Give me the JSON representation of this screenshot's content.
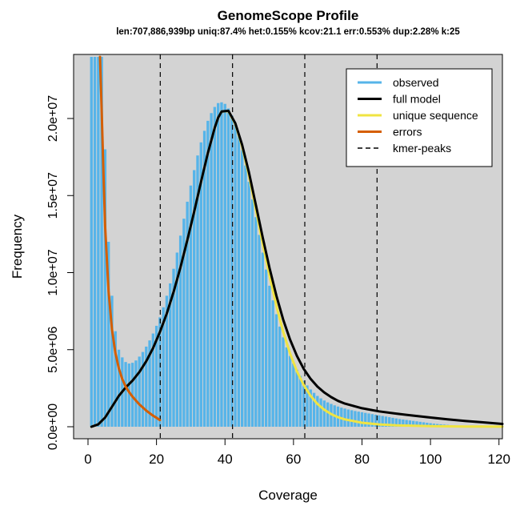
{
  "chart_data": {
    "type": "bar",
    "title": "GenomeScope Profile",
    "subtitle": "len:707,886,939bp uniq:87.4%  het:0.155% kcov:21.1 err:0.553%  dup:2.28%  k:25",
    "xlabel": "Coverage",
    "ylabel": "Frequency",
    "xlim": [
      0,
      121
    ],
    "ylim": [
      0,
      24000000
    ],
    "x_ticks": [
      0,
      20,
      40,
      60,
      80,
      100,
      120
    ],
    "x_tick_labels": [
      "0",
      "20",
      "40",
      "60",
      "80",
      "100",
      "120"
    ],
    "y_ticks": [
      0,
      5000000,
      10000000,
      15000000,
      20000000
    ],
    "y_tick_labels": [
      "0.0e+00",
      "5.0e+06",
      "1.0e+07",
      "1.5e+07",
      "2.0e+07"
    ],
    "kmer_peaks": [
      21.1,
      42.2,
      63.3,
      84.4
    ],
    "legend": {
      "position": "top-right",
      "entries": [
        {
          "label": "observed",
          "color": "#56B4E9",
          "style": "solid"
        },
        {
          "label": "full model",
          "color": "#000000",
          "style": "solid"
        },
        {
          "label": "unique sequence",
          "color": "#F0E442",
          "style": "solid"
        },
        {
          "label": "errors",
          "color": "#D55E00",
          "style": "solid"
        },
        {
          "label": "kmer-peaks",
          "color": "#000000",
          "style": "dashed"
        }
      ]
    },
    "colors": {
      "background": "#d3d3d3",
      "observed": "#56B4E9",
      "full_model": "#000000",
      "unique_sequence": "#F0E442",
      "errors": "#D55E00"
    },
    "series": [
      {
        "name": "observed",
        "x": [
          1,
          2,
          3,
          4,
          5,
          6,
          7,
          8,
          9,
          10,
          11,
          12,
          13,
          14,
          15,
          16,
          17,
          18,
          19,
          20,
          21,
          22,
          23,
          24,
          25,
          26,
          27,
          28,
          29,
          30,
          31,
          32,
          33,
          34,
          35,
          36,
          37,
          38,
          39,
          40,
          41,
          42,
          43,
          44,
          45,
          46,
          47,
          48,
          49,
          50,
          51,
          52,
          53,
          54,
          55,
          56,
          57,
          58,
          59,
          60,
          61,
          62,
          63,
          64,
          65,
          66,
          67,
          68,
          69,
          70,
          71,
          72,
          73,
          74,
          75,
          76,
          77,
          78,
          79,
          80,
          81,
          82,
          83,
          84,
          85,
          86,
          87,
          88,
          89,
          90,
          91,
          92,
          93,
          94,
          95,
          96,
          97,
          98,
          99,
          100,
          101,
          102,
          103,
          104,
          105,
          106,
          107,
          108,
          109,
          110,
          111,
          112,
          113,
          114,
          115,
          116,
          117,
          118,
          119,
          120,
          121
        ],
        "y": [
          24000000,
          24000000,
          24000000,
          24000000,
          18000000,
          12000000,
          8500000,
          6200000,
          5000000,
          4500000,
          4200000,
          4100000,
          4150000,
          4300000,
          4550000,
          4850000,
          5200000,
          5600000,
          6050000,
          6550000,
          7100000,
          7750000,
          8500000,
          9300000,
          10250000,
          11300000,
          12400000,
          13500000,
          14600000,
          15650000,
          16650000,
          17600000,
          18450000,
          19200000,
          19850000,
          20350000,
          20750000,
          21000000,
          21050000,
          20950000,
          20650000,
          20200000,
          19600000,
          18850000,
          17950000,
          16950000,
          15900000,
          14750000,
          13600000,
          12450000,
          11300000,
          10200000,
          9150000,
          8200000,
          7300000,
          6500000,
          5800000,
          5150000,
          4600000,
          4100000,
          3700000,
          3300000,
          2980000,
          2680000,
          2420000,
          2200000,
          2000000,
          1840000,
          1700000,
          1580000,
          1480000,
          1390000,
          1310000,
          1240000,
          1180000,
          1120000,
          1070000,
          1020000,
          980000,
          940000,
          900000,
          860000,
          820000,
          780000,
          740000,
          700000,
          660000,
          620000,
          580000,
          540000,
          500000,
          470000,
          440000,
          410000,
          380000,
          350000,
          320000,
          290000,
          260000,
          230000,
          200000,
          180000,
          160000,
          140000,
          120000,
          100000,
          90000,
          80000,
          70000,
          60000,
          50000,
          40000,
          30000,
          25000,
          20000,
          15000,
          10000,
          8000,
          6000,
          4000,
          2000
        ]
      },
      {
        "name": "full model",
        "x": [
          1,
          3,
          5,
          7,
          9,
          11,
          13,
          15,
          17,
          19,
          21,
          23,
          25,
          27,
          29,
          31,
          33,
          35,
          37,
          38,
          39,
          41,
          43,
          45,
          47,
          49,
          51,
          53,
          55,
          57,
          59,
          61,
          63,
          65,
          67,
          69,
          71,
          73,
          75,
          80,
          85,
          90,
          95,
          100,
          105,
          110,
          115,
          121
        ],
        "y": [
          0,
          150000,
          600000,
          1300000,
          2000000,
          2550000,
          3000000,
          3550000,
          4250000,
          5100000,
          6150000,
          7350000,
          8750000,
          10350000,
          12100000,
          13950000,
          15900000,
          17750000,
          19400000,
          20050000,
          20450000,
          20500000,
          19700000,
          18300000,
          16500000,
          14400000,
          12300000,
          10300000,
          8500000,
          6950000,
          5650000,
          4600000,
          3750000,
          3100000,
          2600000,
          2220000,
          1920000,
          1680000,
          1500000,
          1200000,
          1000000,
          850000,
          720000,
          600000,
          480000,
          380000,
          290000,
          180000
        ]
      },
      {
        "name": "unique sequence",
        "x": [
          1,
          3,
          5,
          7,
          9,
          11,
          13,
          15,
          17,
          19,
          21,
          23,
          25,
          27,
          29,
          31,
          33,
          35,
          37,
          38,
          39,
          41,
          43,
          45,
          47,
          49,
          51,
          53,
          55,
          57,
          59,
          61,
          63,
          65,
          67,
          69,
          71,
          73,
          75,
          80,
          85,
          90,
          95,
          100,
          105,
          110,
          115,
          121
        ],
        "y": [
          0,
          150000,
          600000,
          1300000,
          2000000,
          2550000,
          3000000,
          3550000,
          4250000,
          5100000,
          6150000,
          7350000,
          8750000,
          10350000,
          12100000,
          13950000,
          15900000,
          17750000,
          19400000,
          20050000,
          20450000,
          20480000,
          19650000,
          18200000,
          16300000,
          14100000,
          11900000,
          9800000,
          7850000,
          6150000,
          4750000,
          3600000,
          2700000,
          2000000,
          1480000,
          1100000,
          820000,
          620000,
          480000,
          260000,
          150000,
          95000,
          60000,
          40000,
          25000,
          15000,
          8000,
          3000
        ]
      },
      {
        "name": "errors",
        "x": [
          3.5,
          4,
          4.5,
          5,
          6,
          7,
          8,
          9,
          10,
          11,
          12,
          13,
          14,
          15,
          16,
          17,
          18,
          19,
          20,
          21
        ],
        "y": [
          24000000,
          20500000,
          16500000,
          13000000,
          8800000,
          6300000,
          4800000,
          3800000,
          3100000,
          2600000,
          2250000,
          1950000,
          1700000,
          1450000,
          1250000,
          1050000,
          880000,
          720000,
          580000,
          430000
        ]
      }
    ]
  }
}
